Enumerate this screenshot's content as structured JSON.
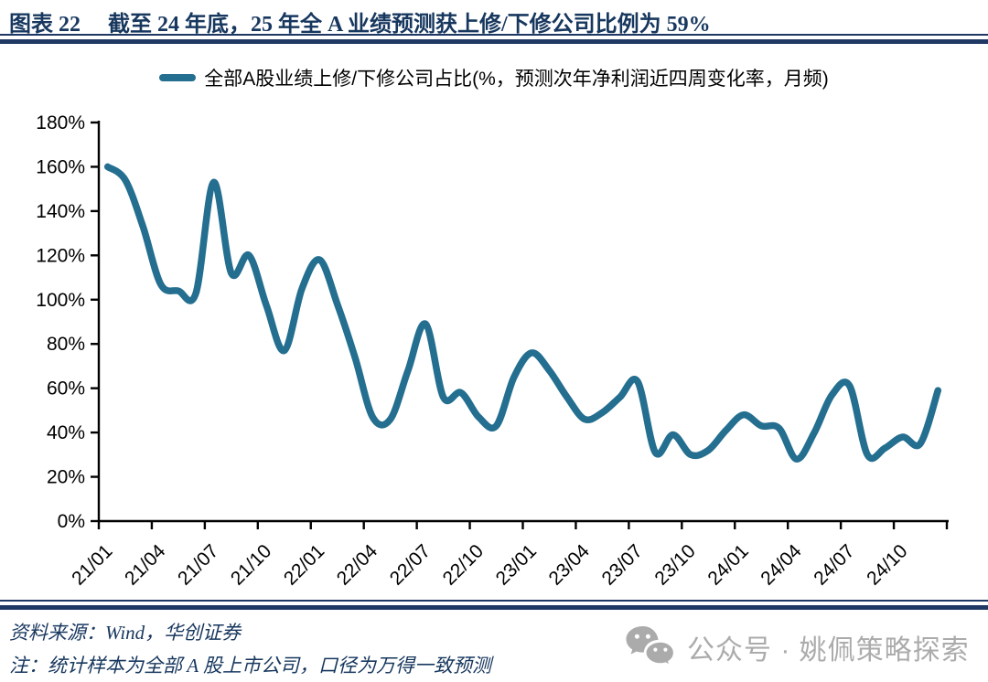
{
  "figure": {
    "label": "图表  22",
    "title": "截至 24 年底，25 年全 A 业绩预测获上修/下修公司比例为 59%"
  },
  "chart_data": {
    "type": "line",
    "title": "截至24年底，25年全A业绩预测获上修/下修公司比例为59%",
    "series_name": "全部A股业绩上修/下修公司占比(%，预测次年净利润近四周变化率，月频)",
    "x": [
      "21/01",
      "21/02",
      "21/03",
      "21/04",
      "21/05",
      "21/06",
      "21/07",
      "21/08",
      "21/09",
      "21/10",
      "21/11",
      "21/12",
      "22/01",
      "22/02",
      "22/03",
      "22/04",
      "22/05",
      "22/06",
      "22/07",
      "22/08",
      "22/09",
      "22/10",
      "22/11",
      "22/12",
      "23/01",
      "23/02",
      "23/03",
      "23/04",
      "23/05",
      "23/06",
      "23/07",
      "23/08",
      "23/09",
      "23/10",
      "23/11",
      "23/12",
      "24/01",
      "24/02",
      "24/03",
      "24/04",
      "24/05",
      "24/06",
      "24/07",
      "24/08",
      "24/09",
      "24/10",
      "24/11",
      "24/12"
    ],
    "values": [
      160,
      154,
      133,
      107,
      104,
      103,
      153,
      112,
      120,
      97,
      77,
      105,
      118,
      98,
      74,
      47,
      46,
      68,
      89,
      56,
      58,
      47,
      43,
      65,
      76,
      68,
      56,
      46,
      49,
      56,
      63,
      31,
      39,
      30,
      32,
      41,
      48,
      43,
      42,
      28,
      40,
      57,
      61,
      30,
      33,
      38,
      35,
      59
    ],
    "unit": "%",
    "ylim": [
      0,
      180
    ],
    "y_tick_step": 20,
    "y_tick_labels": [
      "0%",
      "20%",
      "40%",
      "60%",
      "80%",
      "100%",
      "120%",
      "140%",
      "160%",
      "180%"
    ],
    "x_tick_labels": [
      "21/01",
      "21/04",
      "21/07",
      "21/10",
      "22/01",
      "22/04",
      "22/07",
      "22/10",
      "23/01",
      "23/04",
      "23/07",
      "23/10",
      "24/01",
      "24/04",
      "24/07",
      "24/10"
    ],
    "x_tick_every": 3,
    "grid": false,
    "legend_position": "top",
    "line_color": "#246E90"
  },
  "footer": {
    "source": "资料来源：Wind，华创证券",
    "note": "注：统计样本为全部 A 股上市公司，口径为万得一致预测"
  },
  "watermark": {
    "icon": "wechat-icon",
    "text": "公众号 · 姚佩策略探索"
  },
  "colors": {
    "navy": "#17375E",
    "rule": "#1F3864",
    "line": "#246E90",
    "axis": "#000000",
    "watermark_gray": "#ABABAB"
  }
}
